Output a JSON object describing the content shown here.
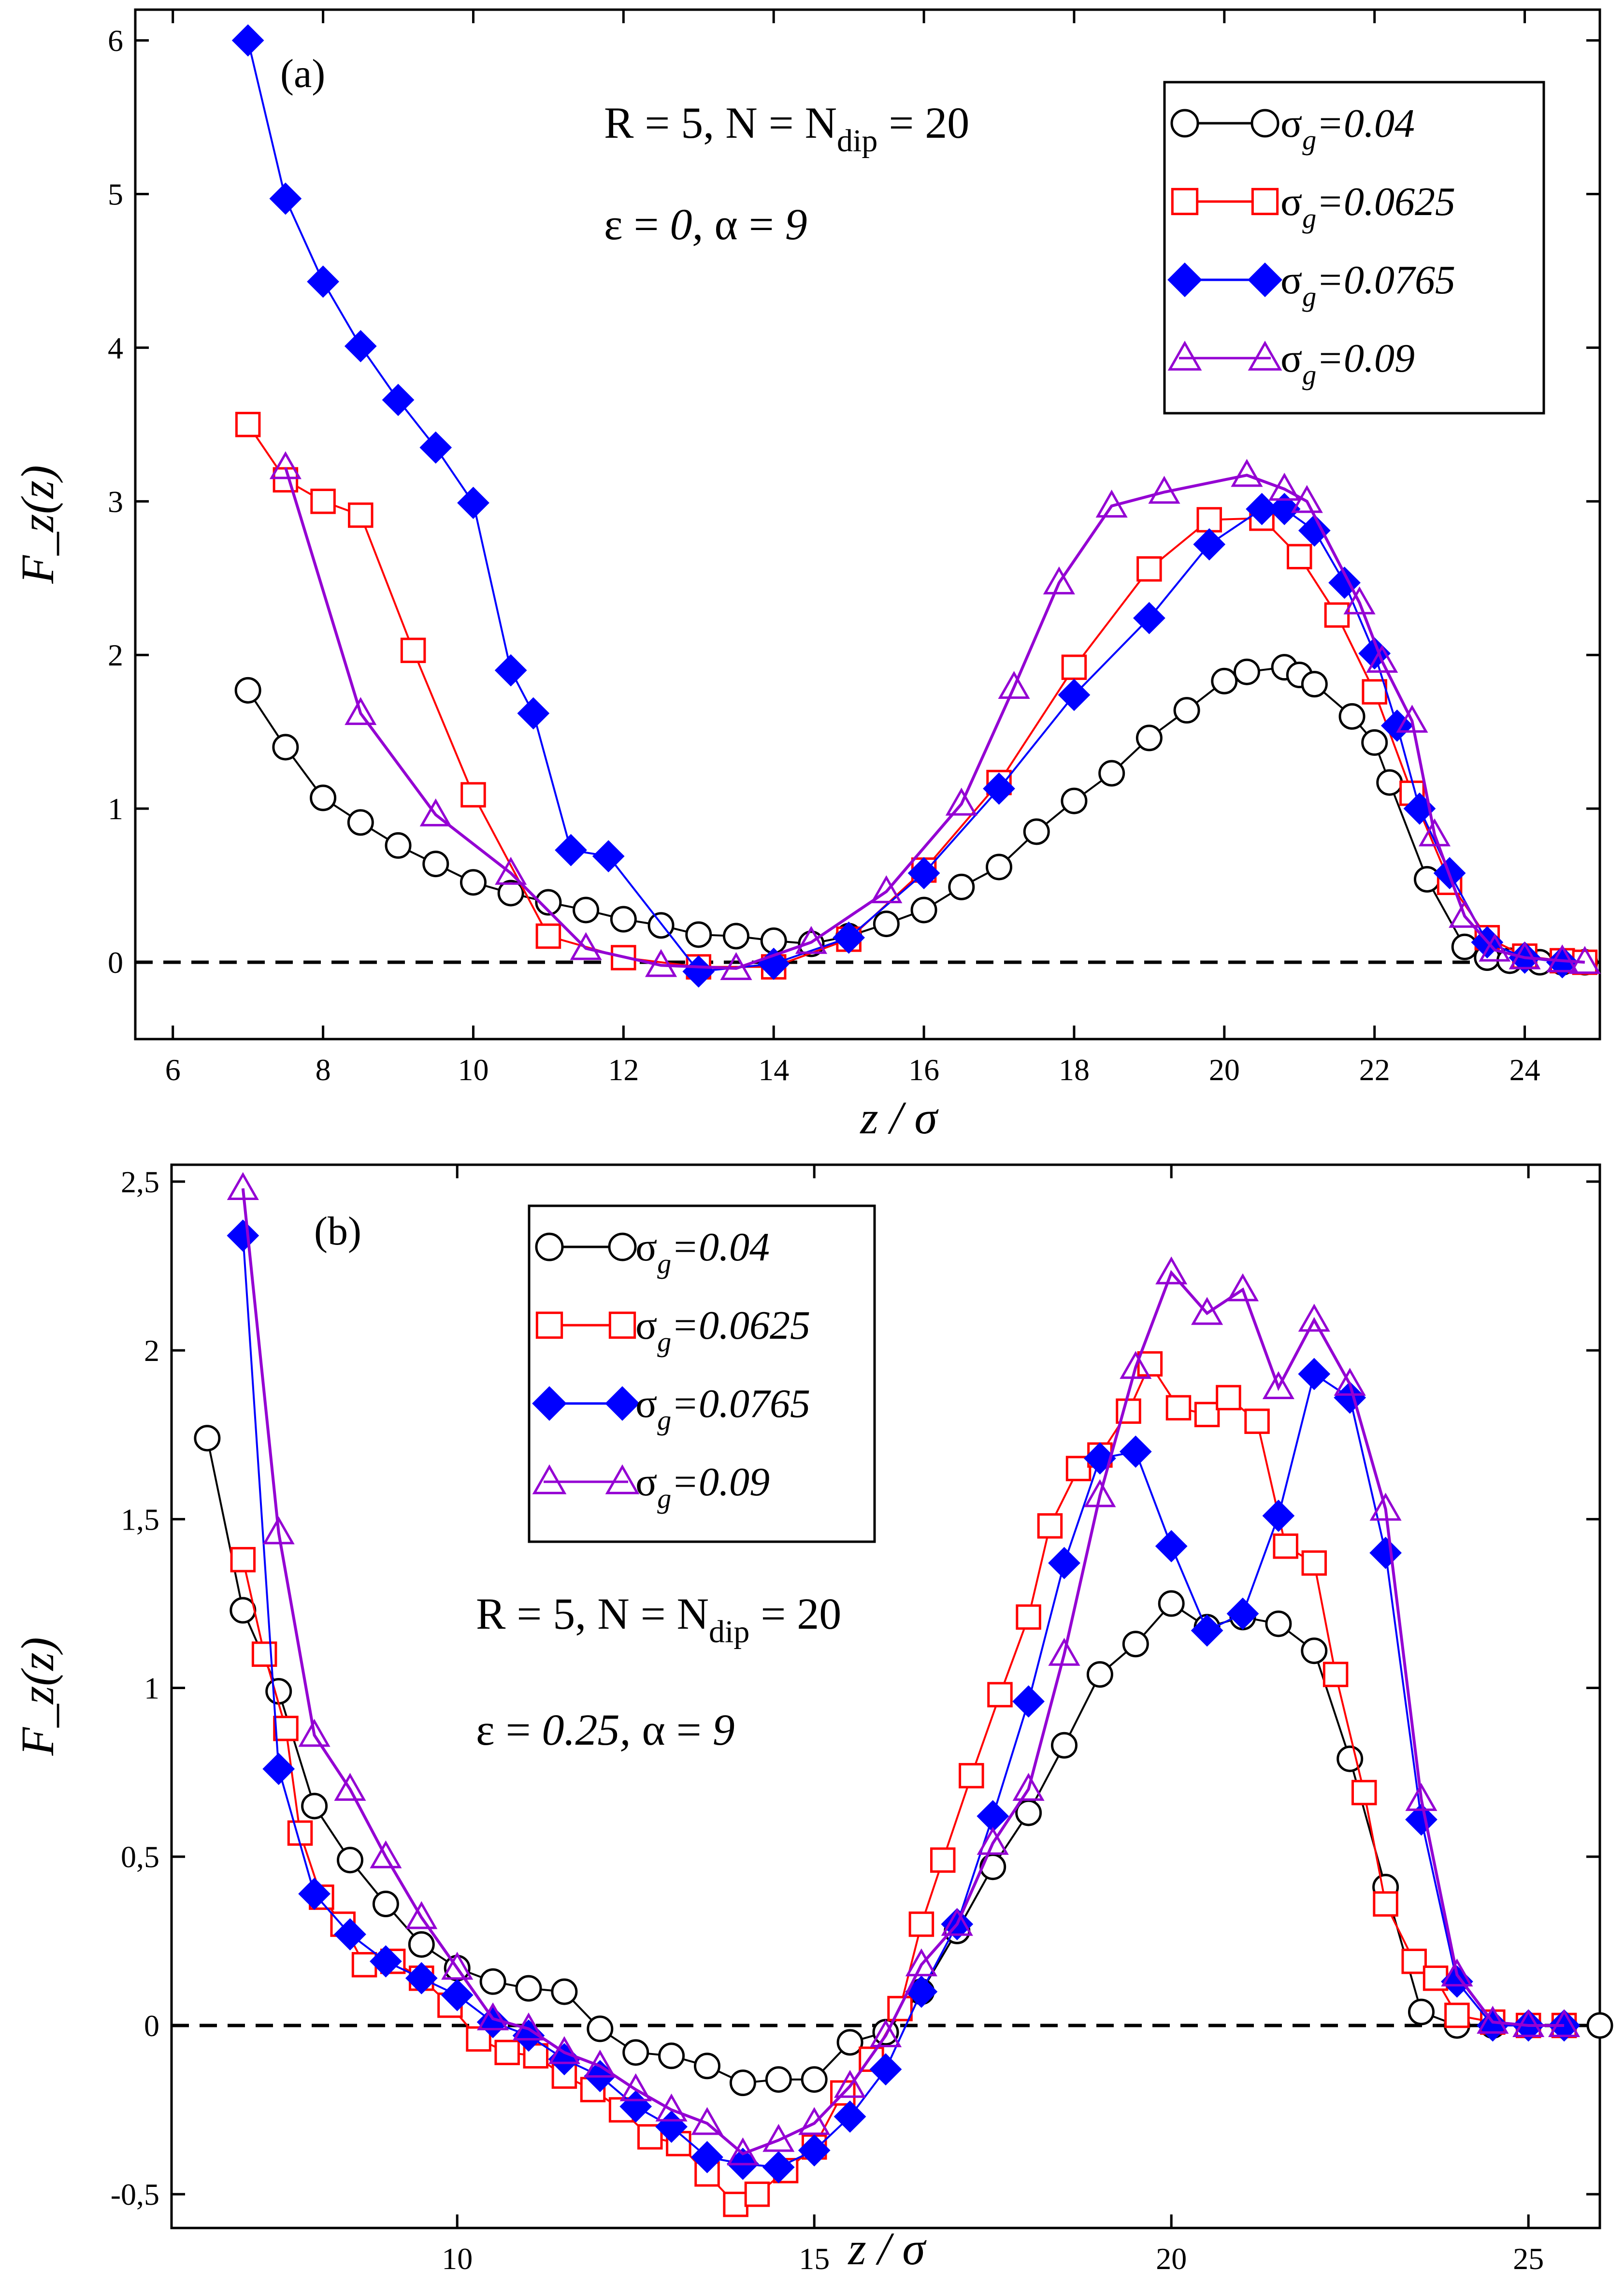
{
  "chart_data": [
    {
      "type": "line",
      "panel_label": "(a)",
      "xlabel": "z / σ",
      "ylabel": "F_z(z)",
      "xlim": [
        5.5,
        25
      ],
      "ylim": [
        -0.5,
        6.2
      ],
      "xticks": [
        6,
        8,
        10,
        12,
        14,
        16,
        18,
        20,
        22,
        24
      ],
      "xtick_labels": [
        "6",
        "8",
        "10",
        "12",
        "14",
        "16",
        "18",
        "20",
        "22",
        "24"
      ],
      "yticks": [
        0,
        1,
        2,
        3,
        4,
        5,
        6
      ],
      "ytick_labels": [
        "0",
        "1",
        "2",
        "3",
        "4",
        "5",
        "6"
      ],
      "annotations": [
        "R = 5,  N = N",
        "dip",
        " = 20",
        "ε = ",
        "0,",
        "   α = ",
        "9"
      ],
      "legend_position": "top-right",
      "reference_line": 0,
      "series": [
        {
          "name": "σ",
          "sub": "g",
          "value_label": "=0.04",
          "color": "#000000",
          "marker": "circle-open",
          "x": [
            7,
            7.5,
            8,
            8.5,
            9,
            9.5,
            10,
            10.5,
            11,
            11.5,
            12,
            12.5,
            13,
            13.5,
            14,
            14.5,
            15,
            15.5,
            16,
            16.5,
            17,
            17.5,
            18,
            18.5,
            19,
            19.5,
            20,
            20.3,
            20.8,
            21,
            21.2,
            21.7,
            22,
            22.2,
            22.7,
            23.2,
            23.5,
            23.8,
            24.2,
            24.5,
            24.8
          ],
          "y": [
            1.77,
            1.4,
            1.07,
            0.91,
            0.76,
            0.64,
            0.52,
            0.45,
            0.39,
            0.34,
            0.28,
            0.24,
            0.18,
            0.17,
            0.14,
            0.12,
            0.17,
            0.25,
            0.34,
            0.49,
            0.62,
            0.85,
            1.05,
            1.23,
            1.46,
            1.64,
            1.83,
            1.89,
            1.92,
            1.87,
            1.81,
            1.6,
            1.43,
            1.17,
            0.54,
            0.1,
            0.03,
            0.01,
            0.0,
            0.0,
            0.0
          ]
        },
        {
          "name": "σ",
          "sub": "g",
          "value_label": "=0.0625",
          "color": "#ff0000",
          "marker": "square-open",
          "x": [
            7,
            7.5,
            8,
            8.5,
            9.2,
            10,
            11,
            12,
            13,
            14,
            15,
            16,
            17,
            18,
            19,
            19.8,
            20.5,
            21,
            21.5,
            22,
            22.5,
            23,
            23.5,
            24,
            24.5,
            24.8
          ],
          "y": [
            3.5,
            3.14,
            3.0,
            2.91,
            2.03,
            1.09,
            0.17,
            0.03,
            -0.03,
            -0.03,
            0.15,
            0.6,
            1.17,
            1.92,
            2.56,
            2.88,
            2.89,
            2.64,
            2.26,
            1.76,
            1.1,
            0.52,
            0.16,
            0.04,
            0.01,
            0.0
          ]
        },
        {
          "name": "σ",
          "sub": "g",
          "value_label": "=0.0765",
          "color": "#0000ff",
          "marker": "diamond-filled",
          "x": [
            7,
            7.5,
            8,
            8.5,
            9,
            9.5,
            10,
            10.5,
            10.8,
            11.3,
            11.8,
            13,
            14,
            15,
            16,
            17,
            18,
            19,
            19.8,
            20.5,
            20.8,
            21.2,
            21.6,
            22,
            22.3,
            22.6,
            23,
            23.5,
            24,
            24.5
          ],
          "y": [
            6.0,
            4.97,
            4.43,
            4.01,
            3.66,
            3.35,
            2.99,
            1.9,
            1.62,
            0.73,
            0.69,
            -0.06,
            -0.01,
            0.16,
            0.58,
            1.13,
            1.74,
            2.24,
            2.72,
            2.95,
            2.95,
            2.81,
            2.47,
            2.01,
            1.54,
            1.0,
            0.58,
            0.13,
            0.03,
            0.0
          ]
        },
        {
          "name": "σ",
          "sub": "g",
          "value_label": "=0.09",
          "color": "#9400d3",
          "marker": "triangle-open",
          "x": [
            7.5,
            8.5,
            9.5,
            10.5,
            11.5,
            12.5,
            13.5,
            14.5,
            15.5,
            16.5,
            17.2,
            17.8,
            18.5,
            19.2,
            20.3,
            20.8,
            21.1,
            21.8,
            22.1,
            22.5,
            22.8,
            23.2,
            23.6,
            24.0,
            24.5,
            24.8
          ],
          "y": [
            3.22,
            1.62,
            0.96,
            0.58,
            0.09,
            -0.02,
            -0.04,
            0.13,
            0.46,
            1.03,
            1.79,
            2.47,
            2.97,
            3.06,
            3.17,
            3.08,
            3.0,
            2.34,
            1.96,
            1.57,
            0.83,
            0.3,
            0.08,
            0.03,
            0.01,
            0.0
          ]
        }
      ]
    },
    {
      "type": "line",
      "panel_label": "(b)",
      "xlabel": "z / σ",
      "ylabel": "F_z(z)",
      "xlim": [
        6,
        26
      ],
      "ylim": [
        -0.6,
        2.55
      ],
      "xticks": [
        10,
        15,
        20,
        25
      ],
      "xtick_labels": [
        "10",
        "15",
        "20",
        "25"
      ],
      "yticks": [
        -0.5,
        0,
        0.5,
        1,
        1.5,
        2,
        2.5
      ],
      "ytick_labels": [
        "-0,5",
        "0",
        "0,5",
        "1",
        "1,5",
        "2",
        "2,5"
      ],
      "annotations": [
        "R = 5,  N = N",
        "dip",
        " = 20",
        "ε = ",
        "0.25,",
        "   α = ",
        "9"
      ],
      "legend_position": "top-center",
      "reference_line": 0,
      "series": [
        {
          "name": "σ",
          "sub": "g",
          "value_label": "=0.04",
          "color": "#000000",
          "marker": "circle-open",
          "x": [
            6.5,
            7,
            7.5,
            8,
            8.5,
            9,
            9.5,
            10,
            10.5,
            11,
            11.5,
            12,
            12.5,
            13,
            13.5,
            14,
            14.5,
            15,
            15.5,
            16,
            16.5,
            17,
            17.5,
            18,
            18.5,
            19,
            19.5,
            20,
            20.5,
            21,
            21.5,
            22,
            22.5,
            23,
            23.5,
            24,
            24.5,
            25,
            25.5,
            26
          ],
          "y": [
            1.74,
            1.23,
            0.99,
            0.65,
            0.49,
            0.36,
            0.24,
            0.17,
            0.13,
            0.11,
            0.1,
            -0.01,
            -0.08,
            -0.09,
            -0.12,
            -0.17,
            -0.16,
            -0.16,
            -0.05,
            -0.02,
            0.1,
            0.28,
            0.47,
            0.63,
            0.83,
            1.04,
            1.13,
            1.25,
            1.18,
            1.21,
            1.19,
            1.11,
            0.79,
            0.41,
            0.04,
            0.0,
            0.0,
            0.0,
            0.0,
            0.0
          ]
        },
        {
          "name": "σ",
          "sub": "g",
          "value_label": "=0.0625",
          "color": "#ff0000",
          "marker": "square-open",
          "x": [
            7,
            7.3,
            7.6,
            7.8,
            8.1,
            8.4,
            8.7,
            9.1,
            9.5,
            9.9,
            10.3,
            10.7,
            11.1,
            11.5,
            11.9,
            12.3,
            12.7,
            13.1,
            13.5,
            13.9,
            14.2,
            14.6,
            15,
            15.4,
            15.8,
            16.2,
            16.5,
            16.8,
            17.2,
            17.6,
            18,
            18.3,
            18.7,
            19,
            19.4,
            19.7,
            20.1,
            20.5,
            20.8,
            21.2,
            21.6,
            22,
            22.3,
            22.7,
            23,
            23.4,
            23.7,
            24,
            24.5,
            25,
            25.5
          ],
          "y": [
            1.38,
            1.1,
            0.88,
            0.57,
            0.38,
            0.3,
            0.18,
            0.19,
            0.14,
            0.06,
            -0.04,
            -0.08,
            -0.09,
            -0.15,
            -0.19,
            -0.25,
            -0.33,
            -0.35,
            -0.44,
            -0.53,
            -0.5,
            -0.43,
            -0.36,
            -0.2,
            -0.1,
            0.05,
            0.3,
            0.49,
            0.74,
            0.98,
            1.21,
            1.48,
            1.65,
            1.69,
            1.82,
            1.96,
            1.83,
            1.81,
            1.86,
            1.79,
            1.42,
            1.37,
            1.04,
            0.69,
            0.36,
            0.19,
            0.14,
            0.03,
            0.01,
            0.0,
            0.0
          ]
        },
        {
          "name": "σ",
          "sub": "g",
          "value_label": "=0.0765",
          "color": "#0000ff",
          "marker": "diamond-filled",
          "x": [
            7,
            7.5,
            8,
            8.5,
            9,
            9.5,
            10,
            10.5,
            11,
            11.5,
            12,
            12.5,
            13,
            13.5,
            14,
            14.5,
            15,
            15.5,
            16,
            16.5,
            17,
            17.5,
            18,
            18.5,
            19,
            19.5,
            20,
            20.5,
            21,
            21.5,
            22,
            22.5,
            23,
            23.5,
            24,
            24.5,
            25,
            25.5
          ],
          "y": [
            2.34,
            0.76,
            0.39,
            0.27,
            0.19,
            0.14,
            0.09,
            0.01,
            -0.03,
            -0.1,
            -0.15,
            -0.24,
            -0.3,
            -0.39,
            -0.41,
            -0.42,
            -0.37,
            -0.27,
            -0.13,
            0.1,
            0.3,
            0.62,
            0.96,
            1.37,
            1.68,
            1.7,
            1.42,
            1.17,
            1.22,
            1.51,
            1.93,
            1.86,
            1.4,
            0.61,
            0.13,
            0.0,
            0.0,
            0.0
          ]
        },
        {
          "name": "σ",
          "sub": "g",
          "value_label": "=0.09",
          "color": "#9400d3",
          "marker": "triangle-open",
          "x": [
            7,
            7.5,
            8,
            8.5,
            9,
            9.5,
            10,
            10.5,
            11,
            11.5,
            12,
            12.5,
            13,
            13.5,
            14,
            14.5,
            15,
            15.5,
            16,
            16.5,
            17,
            17.5,
            18,
            18.5,
            19,
            19.5,
            20,
            20.5,
            21,
            21.5,
            22,
            22.5,
            23,
            23.5,
            24,
            24.5,
            25,
            25.5
          ],
          "y": [
            2.48,
            1.46,
            0.86,
            0.7,
            0.5,
            0.32,
            0.17,
            0.02,
            -0.01,
            -0.08,
            -0.12,
            -0.19,
            -0.25,
            -0.29,
            -0.38,
            -0.34,
            -0.29,
            -0.18,
            -0.03,
            0.18,
            0.3,
            0.54,
            0.7,
            1.1,
            1.57,
            1.95,
            2.23,
            2.11,
            2.18,
            1.89,
            2.09,
            1.9,
            1.53,
            0.67,
            0.15,
            0.01,
            0.0,
            0.0
          ]
        }
      ]
    }
  ]
}
